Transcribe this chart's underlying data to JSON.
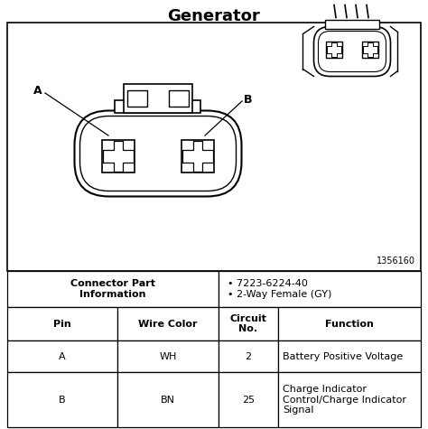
{
  "title": "Generator",
  "title_fontsize": 13,
  "title_fontweight": "bold",
  "bg_color": "#ffffff",
  "part_number": "7223-6224-40",
  "connector_type": "2-Way Female (GY)",
  "watermark": "1356160",
  "table_headers": [
    "Pin",
    "Wire Color",
    "Circuit\nNo.",
    "Function"
  ],
  "table_rows": [
    [
      "A",
      "WH",
      "2",
      "Battery Positive Voltage"
    ],
    [
      "B",
      "BN",
      "25",
      "Charge Indicator\nControl/Charge Indicator\nSignal"
    ]
  ],
  "connector_info_label": "Connector Part\nInformation"
}
